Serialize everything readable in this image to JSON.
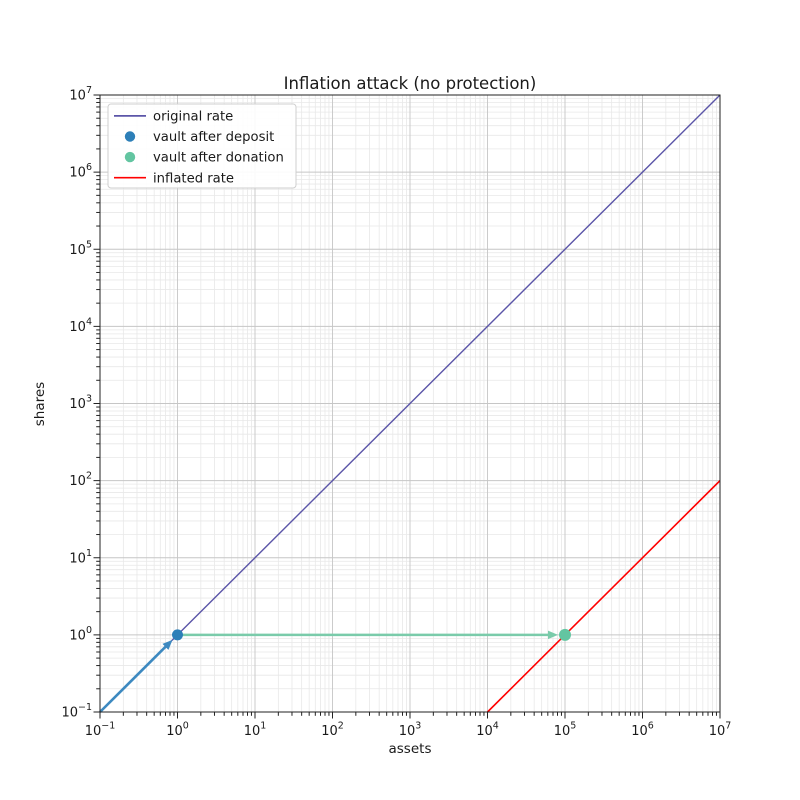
{
  "chart_data": {
    "type": "line",
    "title": "Inflation attack (no protection)",
    "xlabel": "assets",
    "ylabel": "shares",
    "xscale": "log",
    "yscale": "log",
    "xlim": [
      0.1,
      10000000
    ],
    "ylim": [
      0.1,
      10000000
    ],
    "tick_base": "10",
    "x_tick_exponents": [
      -1,
      0,
      1,
      2,
      3,
      4,
      5,
      6,
      7
    ],
    "y_tick_exponents": [
      -1,
      0,
      1,
      2,
      3,
      4,
      5,
      6,
      7
    ],
    "grid": {
      "major": true,
      "minor": true,
      "major_color": "#c6c6c6",
      "minor_color": "#e8e8e8"
    },
    "legend": {
      "position": "upper left"
    },
    "series": [
      {
        "name": "original rate",
        "kind": "line",
        "color": "#5b55a8",
        "width": 1.4,
        "points": [
          [
            0.1,
            0.1
          ],
          [
            10000000,
            10000000
          ]
        ]
      },
      {
        "name": "vault after deposit",
        "kind": "scatter",
        "color": "#2d7fb8",
        "radius": 5.5,
        "points": [
          [
            1,
            1
          ]
        ]
      },
      {
        "name": "vault after donation",
        "kind": "scatter",
        "color": "#63c5a1",
        "radius": 6,
        "points": [
          [
            100000,
            1
          ]
        ]
      },
      {
        "name": "inflated rate",
        "kind": "line",
        "color": "#ff0000",
        "width": 1.6,
        "points": [
          [
            10000,
            0.1
          ],
          [
            10000000,
            100
          ]
        ]
      }
    ],
    "annotations": [
      {
        "name": "deposit-arrow",
        "kind": "arrow",
        "color": "#3d89c0",
        "width": 2.6,
        "from": [
          0.1,
          0.1
        ],
        "to": [
          1,
          1
        ]
      },
      {
        "name": "donation-arrow",
        "kind": "arrow",
        "color": "#7acbaa",
        "width": 2.6,
        "from": [
          1,
          1
        ],
        "to": [
          100000,
          1
        ]
      }
    ]
  }
}
